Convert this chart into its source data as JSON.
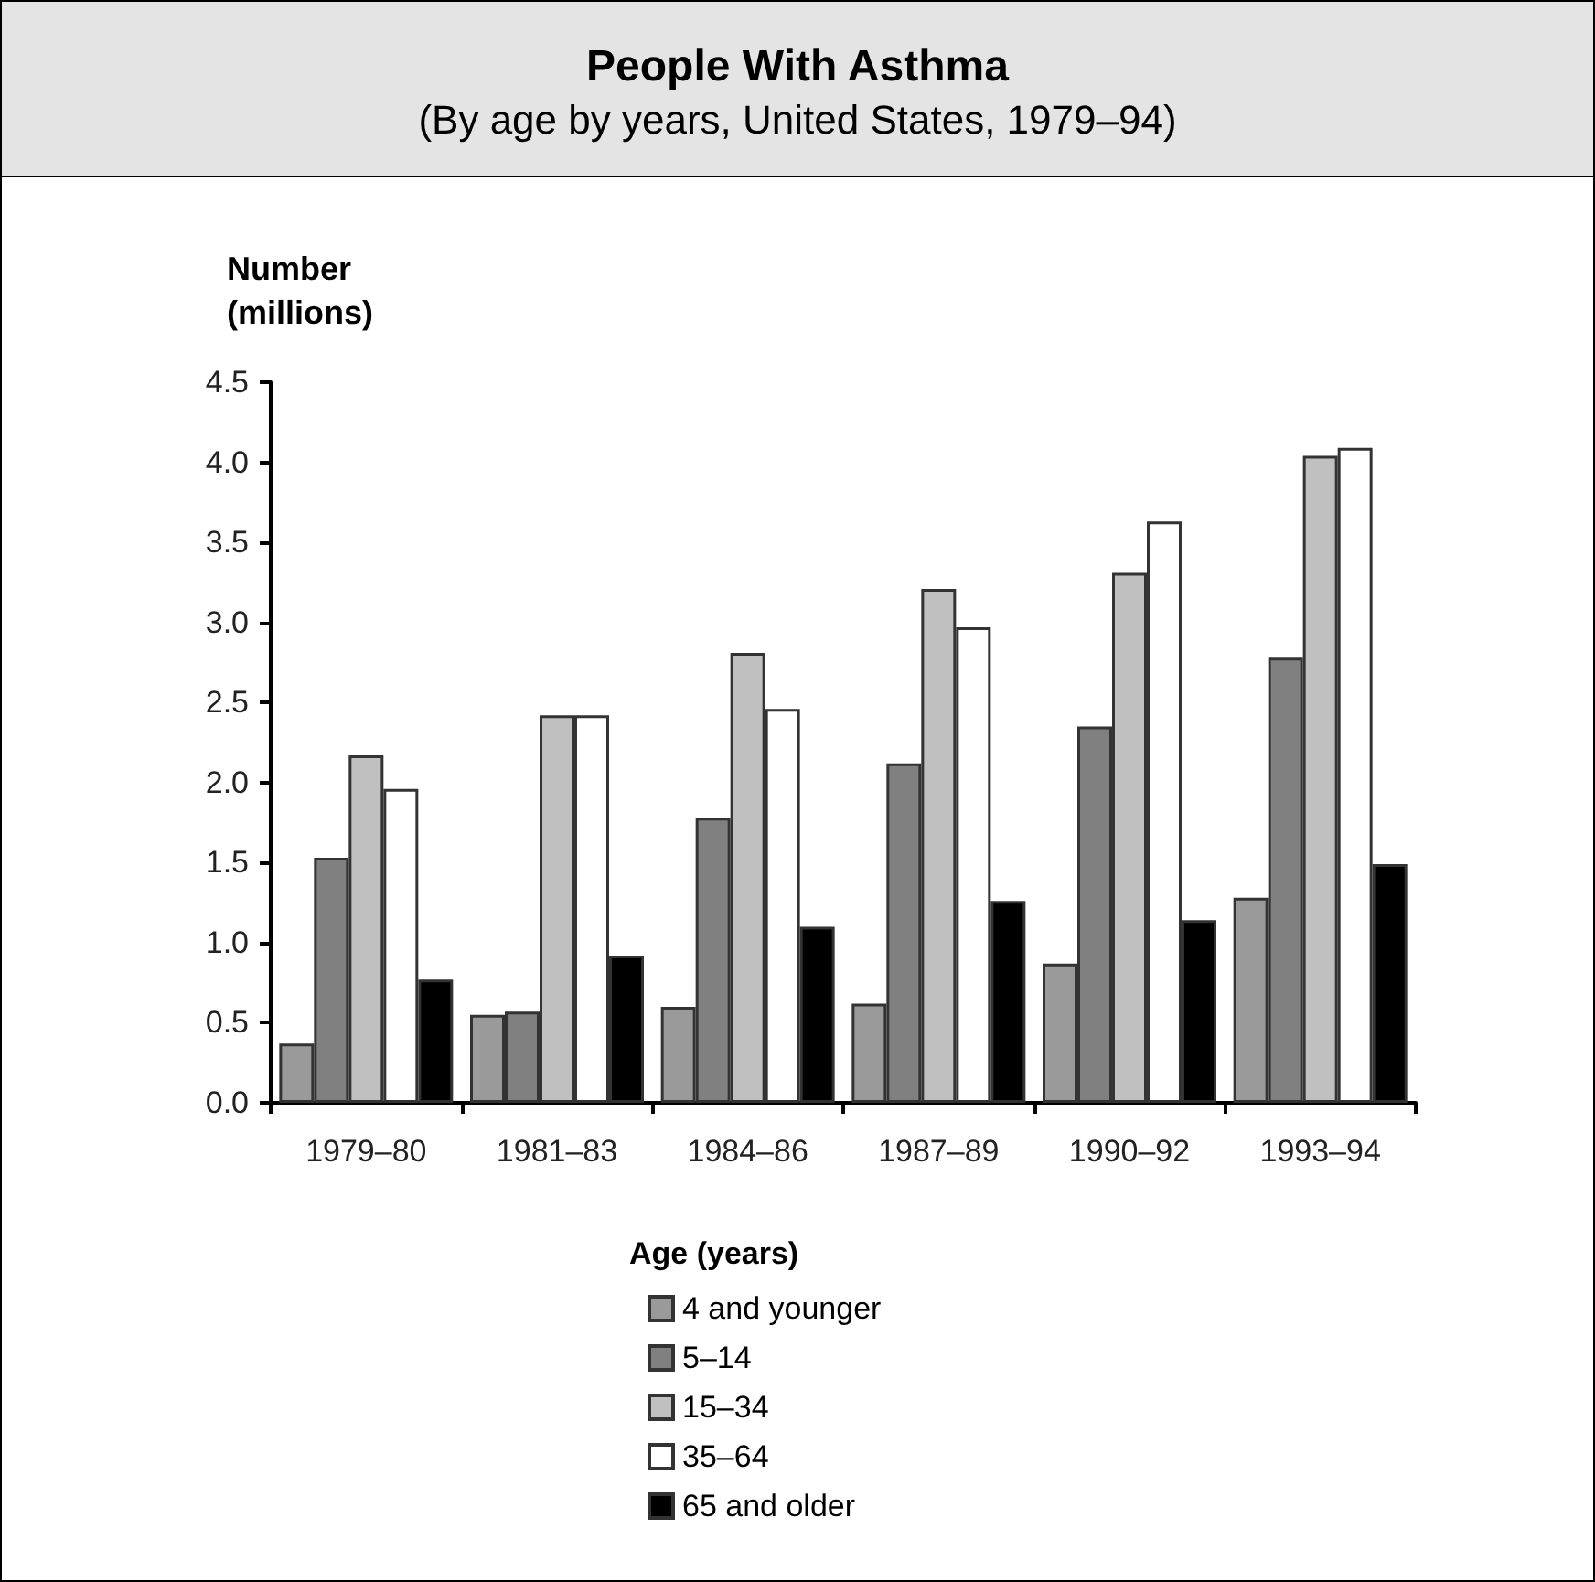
{
  "chart_data": {
    "type": "bar",
    "title": "People With Asthma",
    "subtitle": "(By age by years, United States, 1979–94)",
    "ylabel": "Number\n(millions)",
    "legend_title": "Age (years)",
    "categories": [
      "1979–80",
      "1981–83",
      "1984–86",
      "1987–89",
      "1990–92",
      "1993–94"
    ],
    "series": [
      {
        "name": "4 and younger",
        "color": "#9a9a9a",
        "values": [
          0.37,
          0.55,
          0.6,
          0.62,
          0.87,
          1.28
        ]
      },
      {
        "name": "5–14",
        "color": "#808080",
        "values": [
          1.53,
          0.57,
          1.78,
          2.12,
          2.35,
          2.78
        ]
      },
      {
        "name": "15–34",
        "color": "#c0c0c0",
        "values": [
          2.17,
          2.42,
          2.81,
          3.21,
          3.31,
          4.04
        ]
      },
      {
        "name": "35–64",
        "color": "#ffffff",
        "values": [
          1.96,
          2.42,
          2.46,
          2.97,
          3.63,
          4.09
        ]
      },
      {
        "name": "65 and older",
        "color": "#000000",
        "values": [
          0.77,
          0.92,
          1.1,
          1.26,
          1.14,
          1.49
        ]
      }
    ],
    "ylim": [
      0,
      4.5
    ],
    "yticks": [
      {
        "value": 0,
        "label": "0.0"
      },
      0.5,
      {
        "value": 1,
        "label": "1.0"
      },
      1.5,
      {
        "value": 2,
        "label": "2.0"
      },
      2.5,
      {
        "value": 3,
        "label": "3.0"
      },
      3.5,
      {
        "value": 4,
        "label": "4.0"
      },
      4.5
    ],
    "grid": false,
    "legend": "bottom"
  }
}
